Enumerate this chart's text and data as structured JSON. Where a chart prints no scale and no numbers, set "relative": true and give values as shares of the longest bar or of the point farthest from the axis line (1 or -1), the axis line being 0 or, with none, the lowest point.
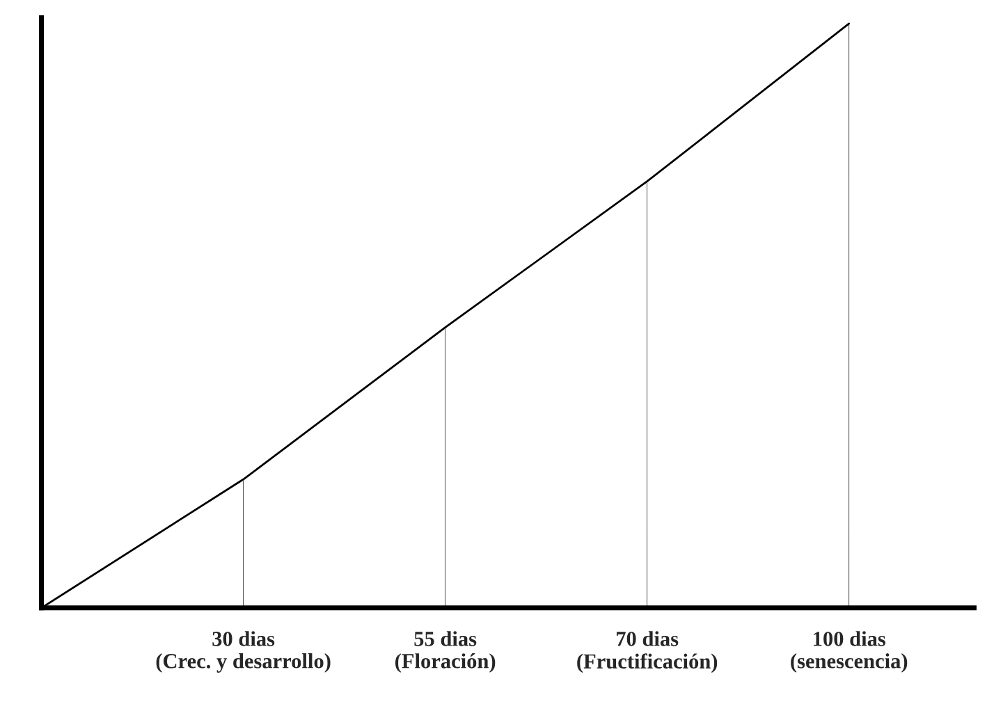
{
  "chart_data": {
    "type": "line",
    "relative": true,
    "categories": [
      null,
      "30 dias\n(Crec. y desarrollo)",
      "55 dias\n(Floración)",
      "70 dias\n(Fructificación)",
      "100 dias\n(senescencia)"
    ],
    "series": [
      {
        "color": "#000000",
        "values": [
          0,
          0.22,
          0.48,
          0.73,
          1.0
        ]
      },
      {
        "type": "bar",
        "color": "#000000",
        "values": [
          null,
          0.22,
          0.48,
          0.73,
          1.0
        ]
      }
    ],
    "grid": false,
    "legend": false,
    "marker": "none",
    "line_style": "solid",
    "tick_labels": "x"
  }
}
